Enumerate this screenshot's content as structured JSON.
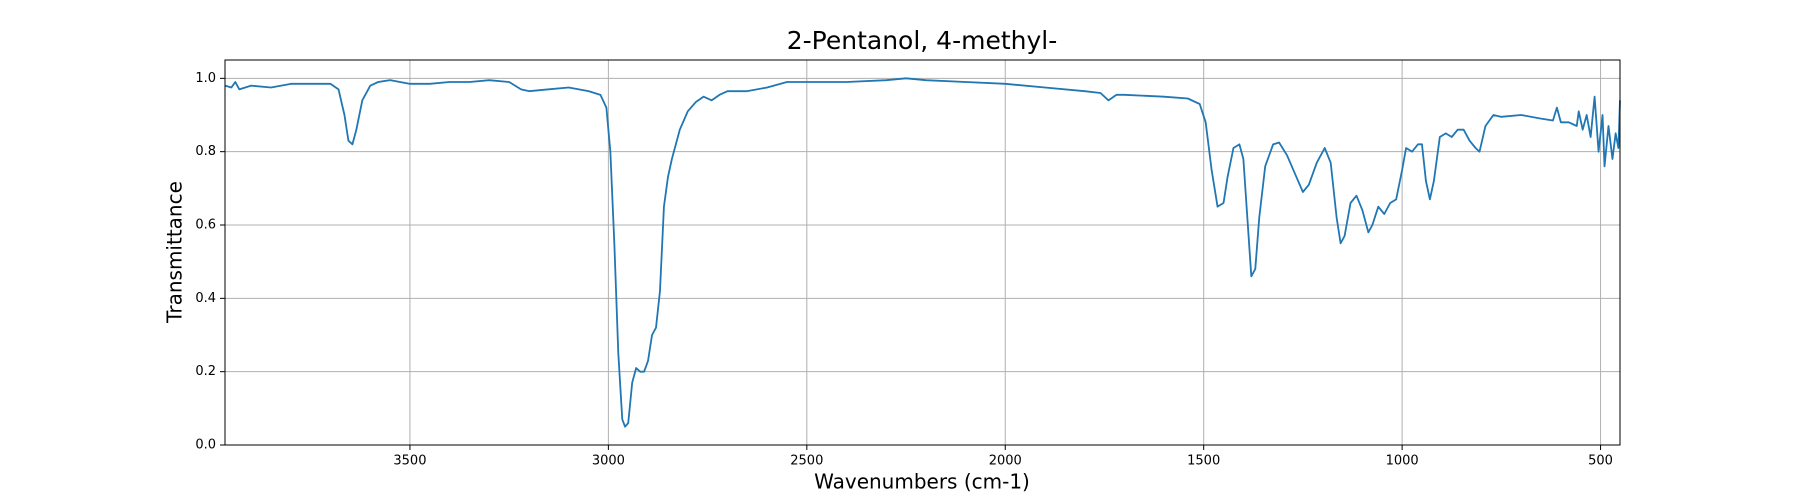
{
  "chart_data": {
    "type": "line",
    "title": "2-Pentanol, 4-methyl-",
    "x_label": "Wavenumbers (cm-1)",
    "y_label": "Transmittance",
    "color": "#1f77b4",
    "grid": true,
    "xlim": [
      3966,
      451
    ],
    "ylim": [
      0,
      1.05
    ],
    "xticks": [
      3500,
      3000,
      2500,
      2000,
      1500,
      1000,
      500
    ],
    "yticks": [
      {
        "value": 0,
        "label": "0.0"
      },
      {
        "value": 0.2,
        "label": "0.2"
      },
      {
        "value": 0.4,
        "label": "0.4"
      },
      {
        "value": 0.6,
        "label": "0.6"
      },
      {
        "value": 0.8,
        "label": "0.8"
      },
      {
        "value": 1,
        "label": "1.0"
      }
    ],
    "x": [
      3966,
      3950,
      3940,
      3930,
      3900,
      3850,
      3800,
      3750,
      3700,
      3680,
      3665,
      3655,
      3645,
      3635,
      3620,
      3600,
      3580,
      3550,
      3500,
      3450,
      3400,
      3350,
      3300,
      3250,
      3220,
      3200,
      3150,
      3100,
      3050,
      3020,
      3005,
      2995,
      2985,
      2975,
      2965,
      2958,
      2950,
      2940,
      2930,
      2920,
      2910,
      2900,
      2890,
      2880,
      2870,
      2860,
      2850,
      2840,
      2820,
      2800,
      2780,
      2760,
      2740,
      2720,
      2700,
      2650,
      2600,
      2550,
      2500,
      2400,
      2300,
      2250,
      2200,
      2100,
      2000,
      1900,
      1800,
      1760,
      1740,
      1720,
      1700,
      1600,
      1540,
      1510,
      1495,
      1480,
      1465,
      1450,
      1440,
      1425,
      1410,
      1400,
      1390,
      1380,
      1370,
      1360,
      1345,
      1325,
      1310,
      1290,
      1270,
      1250,
      1235,
      1215,
      1195,
      1180,
      1165,
      1155,
      1145,
      1130,
      1115,
      1100,
      1085,
      1075,
      1060,
      1045,
      1030,
      1015,
      1000,
      990,
      975,
      960,
      950,
      940,
      930,
      920,
      905,
      890,
      875,
      860,
      845,
      830,
      815,
      805,
      790,
      770,
      750,
      700,
      650,
      620,
      610,
      600,
      580,
      560,
      555,
      545,
      535,
      525,
      515,
      505,
      495,
      490,
      480,
      470,
      462,
      455,
      451
    ],
    "values": [
      0.98,
      0.975,
      0.99,
      0.97,
      0.98,
      0.975,
      0.985,
      0.985,
      0.985,
      0.97,
      0.9,
      0.83,
      0.82,
      0.86,
      0.94,
      0.98,
      0.99,
      0.995,
      0.985,
      0.985,
      0.99,
      0.99,
      0.995,
      0.99,
      0.97,
      0.965,
      0.97,
      0.975,
      0.965,
      0.955,
      0.92,
      0.8,
      0.55,
      0.25,
      0.07,
      0.05,
      0.06,
      0.17,
      0.21,
      0.2,
      0.2,
      0.23,
      0.3,
      0.32,
      0.42,
      0.65,
      0.73,
      0.78,
      0.86,
      0.91,
      0.935,
      0.95,
      0.94,
      0.955,
      0.965,
      0.965,
      0.975,
      0.99,
      0.99,
      0.99,
      0.995,
      1.0,
      0.995,
      0.99,
      0.985,
      0.975,
      0.965,
      0.96,
      0.94,
      0.955,
      0.955,
      0.95,
      0.945,
      0.93,
      0.88,
      0.75,
      0.65,
      0.66,
      0.73,
      0.81,
      0.82,
      0.78,
      0.62,
      0.46,
      0.48,
      0.62,
      0.76,
      0.82,
      0.825,
      0.79,
      0.74,
      0.69,
      0.71,
      0.77,
      0.81,
      0.77,
      0.62,
      0.55,
      0.57,
      0.66,
      0.68,
      0.64,
      0.58,
      0.6,
      0.65,
      0.63,
      0.66,
      0.67,
      0.75,
      0.81,
      0.8,
      0.82,
      0.82,
      0.72,
      0.67,
      0.72,
      0.84,
      0.85,
      0.84,
      0.86,
      0.86,
      0.83,
      0.81,
      0.8,
      0.87,
      0.9,
      0.895,
      0.9,
      0.89,
      0.885,
      0.92,
      0.88,
      0.88,
      0.87,
      0.91,
      0.86,
      0.9,
      0.84,
      0.95,
      0.8,
      0.9,
      0.76,
      0.87,
      0.78,
      0.85,
      0.81,
      0.94
    ]
  }
}
